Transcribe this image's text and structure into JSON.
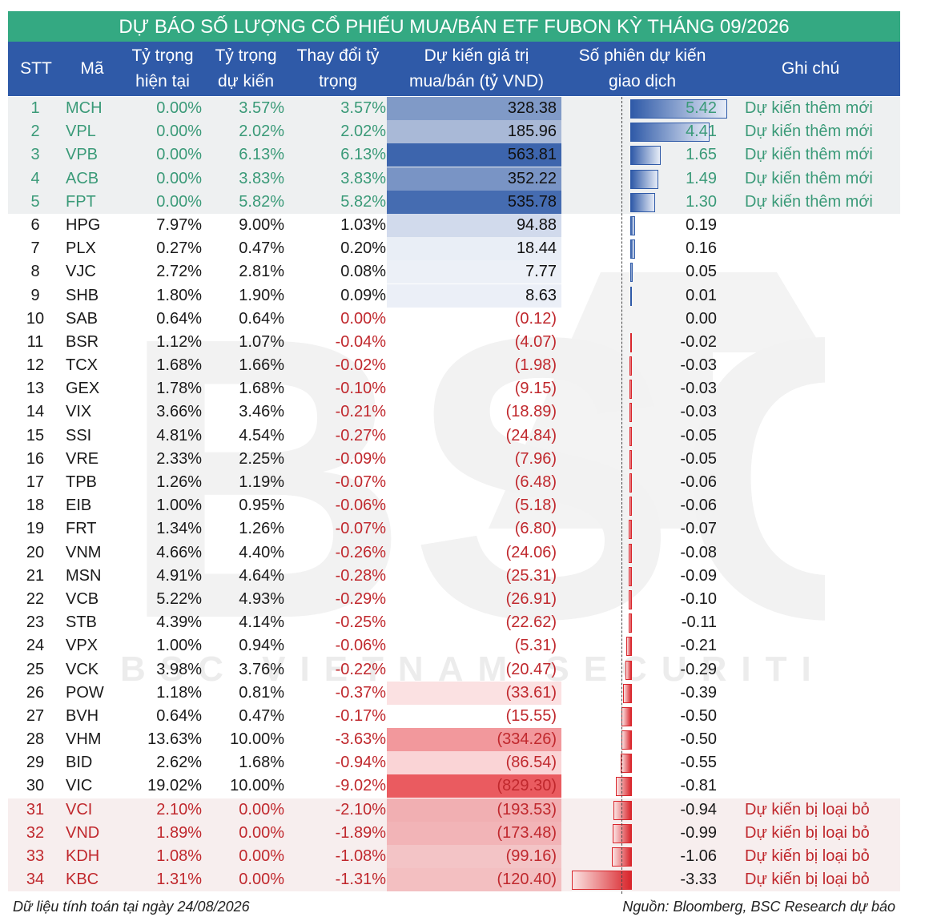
{
  "title": "DỰ BÁO SỐ LƯỢNG CỔ PHIẾU MUA/BÁN ETF FUBON KỲ THÁNG 09/2026",
  "columns": {
    "stt": "STT",
    "code": "Mã",
    "current_weight_l1": "Tỷ trọng",
    "current_weight_l2": "hiện tại",
    "target_weight_l1": "Tỷ trọng",
    "target_weight_l2": "dự kiến",
    "change_l1": "Thay đổi tỷ",
    "change_l2": "trọng",
    "value_l1": "Dự kiến giá trị",
    "value_l2": "mua/bán (tỷ VND)",
    "sessions_l1": "Số phiên dự kiến",
    "sessions_l2": "giao dịch",
    "note": "Ghi chú"
  },
  "watermark": "BSC",
  "watermark_sub": "BSC VIETNAM SECURITIES JSC",
  "colors": {
    "title_bg": "#34a982",
    "header_bg": "#2f5aa8",
    "added_text": "#3a9a78",
    "removed_text": "#c0282d",
    "buy_fill": "#4a72c4",
    "sell_fill": "#e8494f"
  },
  "rows": [
    {
      "stt": "1",
      "code": "MCH",
      "current": "0.00%",
      "target": "3.57%",
      "change": "3.57%",
      "value": "328.38",
      "value_num": 328.38,
      "sessions": "5.42",
      "sessions_num": 5.42,
      "note": "Dự kiến thêm mới",
      "group": "added"
    },
    {
      "stt": "2",
      "code": "VPL",
      "current": "0.00%",
      "target": "2.02%",
      "change": "2.02%",
      "value": "185.96",
      "value_num": 185.96,
      "sessions": "4.41",
      "sessions_num": 4.41,
      "note": "Dự kiến thêm mới",
      "group": "added"
    },
    {
      "stt": "3",
      "code": "VPB",
      "current": "0.00%",
      "target": "6.13%",
      "change": "6.13%",
      "value": "563.81",
      "value_num": 563.81,
      "sessions": "1.65",
      "sessions_num": 1.65,
      "note": "Dự kiến thêm mới",
      "group": "added"
    },
    {
      "stt": "4",
      "code": "ACB",
      "current": "0.00%",
      "target": "3.83%",
      "change": "3.83%",
      "value": "352.22",
      "value_num": 352.22,
      "sessions": "1.49",
      "sessions_num": 1.49,
      "note": "Dự kiến thêm mới",
      "group": "added"
    },
    {
      "stt": "5",
      "code": "FPT",
      "current": "0.00%",
      "target": "5.82%",
      "change": "5.82%",
      "value": "535.78",
      "value_num": 535.78,
      "sessions": "1.30",
      "sessions_num": 1.3,
      "note": "Dự kiến thêm mới",
      "group": "added"
    },
    {
      "stt": "6",
      "code": "HPG",
      "current": "7.97%",
      "target": "9.00%",
      "change": "1.03%",
      "value": "94.88",
      "value_num": 94.88,
      "sessions": "0.19",
      "sessions_num": 0.19,
      "note": "",
      "group": "normal"
    },
    {
      "stt": "7",
      "code": "PLX",
      "current": "0.27%",
      "target": "0.47%",
      "change": "0.20%",
      "value": "18.44",
      "value_num": 18.44,
      "sessions": "0.16",
      "sessions_num": 0.16,
      "note": "",
      "group": "normal"
    },
    {
      "stt": "8",
      "code": "VJC",
      "current": "2.72%",
      "target": "2.81%",
      "change": "0.08%",
      "value": "7.77",
      "value_num": 7.77,
      "sessions": "0.05",
      "sessions_num": 0.05,
      "note": "",
      "group": "normal"
    },
    {
      "stt": "9",
      "code": "SHB",
      "current": "1.80%",
      "target": "1.90%",
      "change": "0.09%",
      "value": "8.63",
      "value_num": 8.63,
      "sessions": "0.01",
      "sessions_num": 0.01,
      "note": "",
      "group": "normal"
    },
    {
      "stt": "10",
      "code": "SAB",
      "current": "0.64%",
      "target": "0.64%",
      "change": "0.00%",
      "value": "(0.12)",
      "value_num": -0.12,
      "sessions": "0.00",
      "sessions_num": 0.0,
      "note": "",
      "group": "normal"
    },
    {
      "stt": "11",
      "code": "BSR",
      "current": "1.12%",
      "target": "1.07%",
      "change": "-0.04%",
      "value": "(4.07)",
      "value_num": -4.07,
      "sessions": "-0.02",
      "sessions_num": -0.02,
      "note": "",
      "group": "normal"
    },
    {
      "stt": "12",
      "code": "TCX",
      "current": "1.68%",
      "target": "1.66%",
      "change": "-0.02%",
      "value": "(1.98)",
      "value_num": -1.98,
      "sessions": "-0.03",
      "sessions_num": -0.03,
      "note": "",
      "group": "normal"
    },
    {
      "stt": "13",
      "code": "GEX",
      "current": "1.78%",
      "target": "1.68%",
      "change": "-0.10%",
      "value": "(9.15)",
      "value_num": -9.15,
      "sessions": "-0.03",
      "sessions_num": -0.03,
      "note": "",
      "group": "normal"
    },
    {
      "stt": "14",
      "code": "VIX",
      "current": "3.66%",
      "target": "3.46%",
      "change": "-0.21%",
      "value": "(18.89)",
      "value_num": -18.89,
      "sessions": "-0.03",
      "sessions_num": -0.03,
      "note": "",
      "group": "normal"
    },
    {
      "stt": "15",
      "code": "SSI",
      "current": "4.81%",
      "target": "4.54%",
      "change": "-0.27%",
      "value": "(24.84)",
      "value_num": -24.84,
      "sessions": "-0.05",
      "sessions_num": -0.05,
      "note": "",
      "group": "normal"
    },
    {
      "stt": "16",
      "code": "VRE",
      "current": "2.33%",
      "target": "2.25%",
      "change": "-0.09%",
      "value": "(7.96)",
      "value_num": -7.96,
      "sessions": "-0.05",
      "sessions_num": -0.05,
      "note": "",
      "group": "normal"
    },
    {
      "stt": "17",
      "code": "TPB",
      "current": "1.26%",
      "target": "1.19%",
      "change": "-0.07%",
      "value": "(6.48)",
      "value_num": -6.48,
      "sessions": "-0.06",
      "sessions_num": -0.06,
      "note": "",
      "group": "normal"
    },
    {
      "stt": "18",
      "code": "EIB",
      "current": "1.00%",
      "target": "0.95%",
      "change": "-0.06%",
      "value": "(5.18)",
      "value_num": -5.18,
      "sessions": "-0.06",
      "sessions_num": -0.06,
      "note": "",
      "group": "normal"
    },
    {
      "stt": "19",
      "code": "FRT",
      "current": "1.34%",
      "target": "1.26%",
      "change": "-0.07%",
      "value": "(6.80)",
      "value_num": -6.8,
      "sessions": "-0.07",
      "sessions_num": -0.07,
      "note": "",
      "group": "normal"
    },
    {
      "stt": "20",
      "code": "VNM",
      "current": "4.66%",
      "target": "4.40%",
      "change": "-0.26%",
      "value": "(24.06)",
      "value_num": -24.06,
      "sessions": "-0.08",
      "sessions_num": -0.08,
      "note": "",
      "group": "normal"
    },
    {
      "stt": "21",
      "code": "MSN",
      "current": "4.91%",
      "target": "4.64%",
      "change": "-0.28%",
      "value": "(25.31)",
      "value_num": -25.31,
      "sessions": "-0.09",
      "sessions_num": -0.09,
      "note": "",
      "group": "normal"
    },
    {
      "stt": "22",
      "code": "VCB",
      "current": "5.22%",
      "target": "4.93%",
      "change": "-0.29%",
      "value": "(26.91)",
      "value_num": -26.91,
      "sessions": "-0.10",
      "sessions_num": -0.1,
      "note": "",
      "group": "normal"
    },
    {
      "stt": "23",
      "code": "STB",
      "current": "4.39%",
      "target": "4.14%",
      "change": "-0.25%",
      "value": "(22.62)",
      "value_num": -22.62,
      "sessions": "-0.11",
      "sessions_num": -0.11,
      "note": "",
      "group": "normal"
    },
    {
      "stt": "24",
      "code": "VPX",
      "current": "1.00%",
      "target": "0.94%",
      "change": "-0.06%",
      "value": "(5.31)",
      "value_num": -5.31,
      "sessions": "-0.21",
      "sessions_num": -0.21,
      "note": "",
      "group": "normal"
    },
    {
      "stt": "25",
      "code": "VCK",
      "current": "3.98%",
      "target": "3.76%",
      "change": "-0.22%",
      "value": "(20.47)",
      "value_num": -20.47,
      "sessions": "-0.29",
      "sessions_num": -0.29,
      "note": "",
      "group": "normal"
    },
    {
      "stt": "26",
      "code": "POW",
      "current": "1.18%",
      "target": "0.81%",
      "change": "-0.37%",
      "value": "(33.61)",
      "value_num": -33.61,
      "sessions": "-0.39",
      "sessions_num": -0.39,
      "note": "",
      "group": "normal"
    },
    {
      "stt": "27",
      "code": "BVH",
      "current": "0.64%",
      "target": "0.47%",
      "change": "-0.17%",
      "value": "(15.55)",
      "value_num": -15.55,
      "sessions": "-0.50",
      "sessions_num": -0.5,
      "note": "",
      "group": "normal"
    },
    {
      "stt": "28",
      "code": "VHM",
      "current": "13.63%",
      "target": "10.00%",
      "change": "-3.63%",
      "value": "(334.26)",
      "value_num": -334.26,
      "sessions": "-0.50",
      "sessions_num": -0.5,
      "note": "",
      "group": "normal"
    },
    {
      "stt": "29",
      "code": "BID",
      "current": "2.62%",
      "target": "1.68%",
      "change": "-0.94%",
      "value": "(86.54)",
      "value_num": -86.54,
      "sessions": "-0.55",
      "sessions_num": -0.55,
      "note": "",
      "group": "normal"
    },
    {
      "stt": "30",
      "code": "VIC",
      "current": "19.02%",
      "target": "10.00%",
      "change": "-9.02%",
      "value": "(829.30)",
      "value_num": -829.3,
      "sessions": "-0.81",
      "sessions_num": -0.81,
      "note": "",
      "group": "normal"
    },
    {
      "stt": "31",
      "code": "VCI",
      "current": "2.10%",
      "target": "0.00%",
      "change": "-2.10%",
      "value": "(193.53)",
      "value_num": -193.53,
      "sessions": "-0.94",
      "sessions_num": -0.94,
      "note": "Dự kiến bị loại bỏ",
      "group": "removed"
    },
    {
      "stt": "32",
      "code": "VND",
      "current": "1.89%",
      "target": "0.00%",
      "change": "-1.89%",
      "value": "(173.48)",
      "value_num": -173.48,
      "sessions": "-0.99",
      "sessions_num": -0.99,
      "note": "Dự kiến bị loại bỏ",
      "group": "removed"
    },
    {
      "stt": "33",
      "code": "KDH",
      "current": "1.08%",
      "target": "0.00%",
      "change": "-1.08%",
      "value": "(99.16)",
      "value_num": -99.16,
      "sessions": "-1.06",
      "sessions_num": -1.06,
      "note": "Dự kiến bị loại bỏ",
      "group": "removed"
    },
    {
      "stt": "34",
      "code": "KBC",
      "current": "1.31%",
      "target": "0.00%",
      "change": "-1.31%",
      "value": "(120.40)",
      "value_num": -120.4,
      "sessions": "-3.33",
      "sessions_num": -3.33,
      "note": "Dự kiến bị loại bỏ",
      "group": "removed"
    }
  ],
  "footer": {
    "left": "Dữ liệu tính toán tại ngày 24/08/2026",
    "right": "Nguồn: Bloomberg, BSC Research dự báo"
  }
}
